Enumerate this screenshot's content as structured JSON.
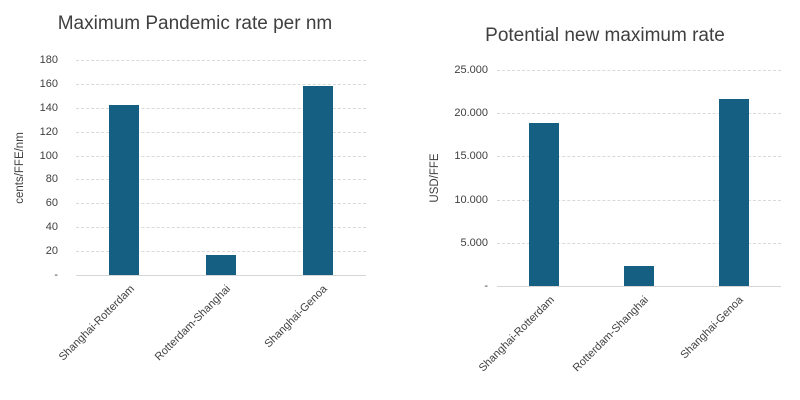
{
  "page": {
    "background": "#ffffff"
  },
  "colors": {
    "bar_fill": "#156082",
    "title_text": "#3f3f3f",
    "axis_text": "#3f3f3f",
    "gridline": "#d9d9d9",
    "zero_baseline": "#d6d6d6"
  },
  "chart_data": [
    {
      "id": "maximum-pandemic-rate",
      "type": "bar",
      "title": "Maximum Pandemic rate per nm",
      "xlabel": "",
      "ylabel": "cents/FFE/nm",
      "categories": [
        "Shanghai-Rotterdam",
        "Rotterdam-Shanghai",
        "Shanghai-Genoa"
      ],
      "values": [
        142,
        17,
        158
      ],
      "ylim": [
        0,
        180
      ],
      "ytick_step": 20,
      "ytick_labels_top_to_bottom": [
        "180",
        "160",
        "140",
        "120",
        "100",
        "80",
        "60",
        "40",
        "20",
        "-"
      ],
      "grid": true,
      "legend_position": "none",
      "bar_color": "#156082"
    },
    {
      "id": "potential-new-maximum-rate",
      "type": "bar",
      "title": "Potential new maximum rate",
      "xlabel": "",
      "ylabel": "USD/FFE",
      "categories": [
        "Shanghai-Rotterdam",
        "Rotterdam-Shanghai",
        "Shanghai-Genoa"
      ],
      "values": [
        18900,
        2300,
        21600
      ],
      "ylim": [
        0,
        25000
      ],
      "ytick_step": 5000,
      "ytick_labels_top_to_bottom": [
        "25.000",
        "20.000",
        "15.000",
        "10.000",
        "5.000",
        "-"
      ],
      "grid": true,
      "legend_position": "none",
      "bar_color": "#156082"
    }
  ]
}
